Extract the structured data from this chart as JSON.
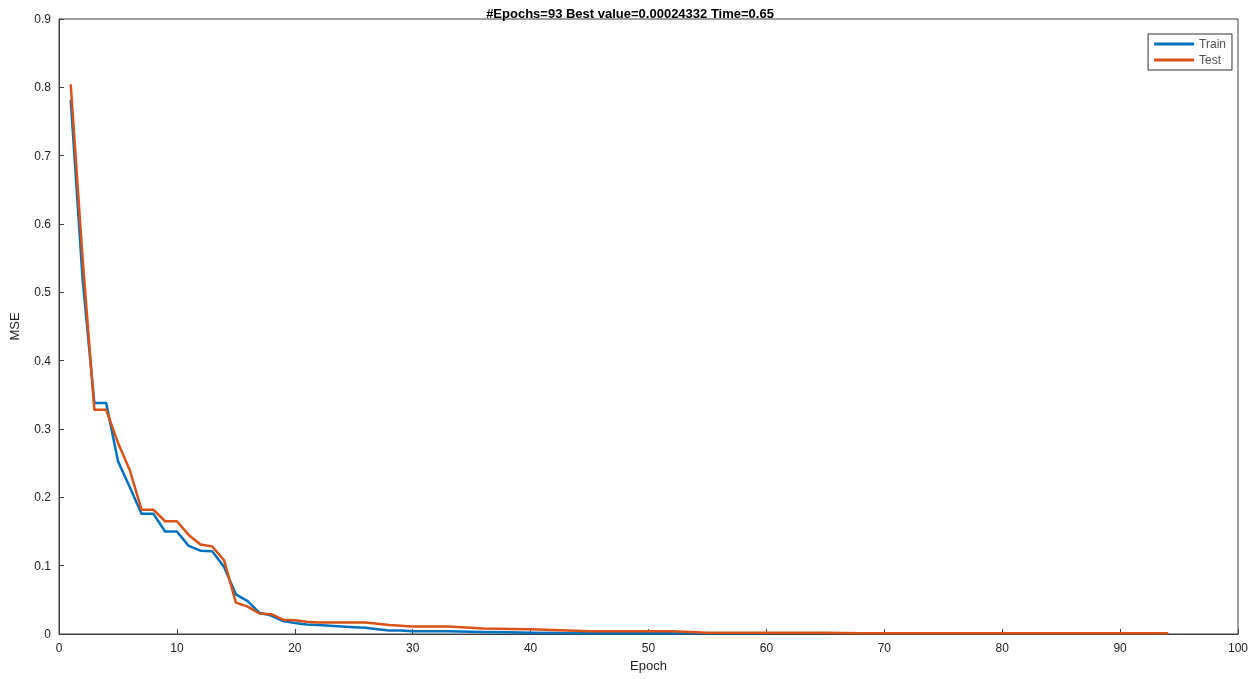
{
  "chart_data": {
    "type": "line",
    "title": "#Epochs=93 Best value=0.00024332 Time=0.65",
    "xlabel": "Epoch",
    "ylabel": "MSE",
    "x": [
      1,
      2,
      3,
      4,
      5,
      6,
      7,
      8,
      9,
      10,
      11,
      12,
      13,
      14,
      15,
      16,
      17,
      18,
      19,
      20,
      21,
      22,
      23,
      24,
      25,
      26,
      27,
      28,
      29,
      30,
      33,
      36,
      40,
      45,
      50,
      52,
      55,
      60,
      63,
      65,
      68,
      70,
      75,
      80,
      85,
      90,
      94
    ],
    "series": [
      {
        "name": "Train",
        "color": "#0072bd",
        "values": [
          0.78,
          0.52,
          0.338,
          0.338,
          0.253,
          0.215,
          0.176,
          0.176,
          0.15,
          0.15,
          0.129,
          0.122,
          0.121,
          0.098,
          0.058,
          0.048,
          0.031,
          0.027,
          0.019,
          0.016,
          0.014,
          0.013,
          0.012,
          0.011,
          0.01,
          0.009,
          0.007,
          0.005,
          0.005,
          0.004,
          0.004,
          0.003,
          0.002,
          0.001,
          0.001,
          0.001,
          0.001,
          0.001,
          null,
          null,
          null,
          null,
          null,
          null,
          null,
          null,
          null
        ]
      },
      {
        "name": "Test",
        "color": "#d95319",
        "values": [
          0.803,
          0.55,
          0.328,
          0.328,
          0.28,
          0.24,
          0.182,
          0.182,
          0.165,
          0.165,
          0.145,
          0.131,
          0.128,
          0.108,
          0.046,
          0.04,
          0.03,
          0.029,
          0.021,
          0.02,
          0.018,
          0.017,
          0.017,
          0.017,
          0.017,
          0.017,
          0.015,
          0.013,
          0.012,
          0.011,
          0.011,
          0.008,
          0.007,
          0.004,
          0.004,
          0.004,
          0.002,
          0.002,
          0.002,
          0.002,
          0.001,
          0.001,
          0.001,
          0.001,
          0.001,
          0.001,
          0.001
        ]
      }
    ],
    "xlim": [
      0,
      100
    ],
    "xticks": [
      0,
      10,
      20,
      30,
      40,
      50,
      60,
      70,
      80,
      90,
      100
    ],
    "ylim": [
      0,
      0.9
    ],
    "yticks": [
      0,
      0.1,
      0.2,
      0.3,
      0.4,
      0.5,
      0.6,
      0.7,
      0.8,
      0.9
    ],
    "grid": false,
    "legend": "top right",
    "marker": "none",
    "line_style": "solid"
  }
}
